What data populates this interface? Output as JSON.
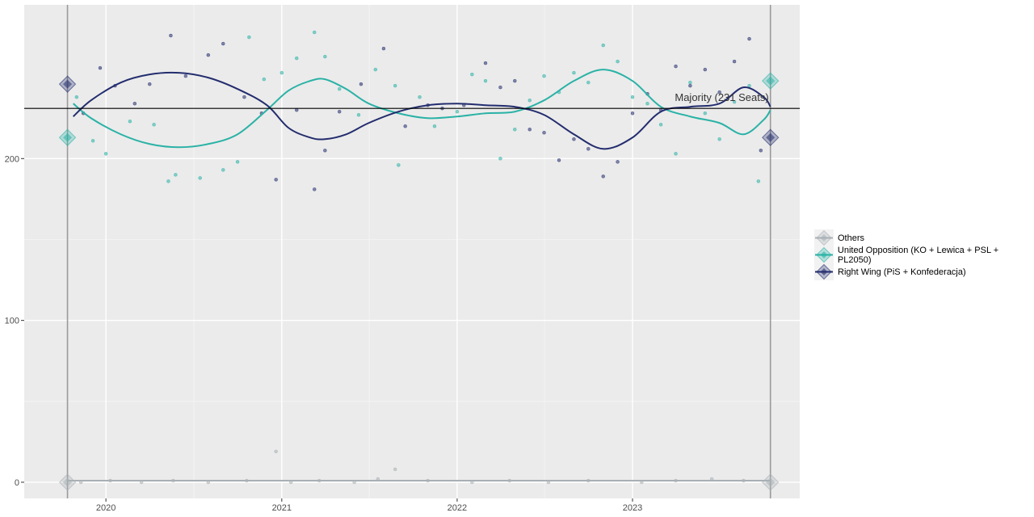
{
  "chart_data": {
    "type": "scatter",
    "title": "",
    "xlabel": "",
    "ylabel": "",
    "x_domain": [
      "2019-07-15",
      "2023-12-15"
    ],
    "ylim": [
      -10,
      295
    ],
    "x_ticks": [
      {
        "value": "2020-01-01",
        "label": "2020"
      },
      {
        "value": "2021-01-01",
        "label": "2021"
      },
      {
        "value": "2022-01-01",
        "label": "2022"
      },
      {
        "value": "2023-01-01",
        "label": "2023"
      }
    ],
    "y_ticks": [
      {
        "value": 0,
        "label": "0"
      },
      {
        "value": 100,
        "label": "100"
      },
      {
        "value": 200,
        "label": "200"
      }
    ],
    "grid": true,
    "legend_position": "right",
    "election_dates": [
      "2019-10-13",
      "2023-10-15"
    ],
    "majority": {
      "value": 231,
      "label": "Majority (231 Seats)"
    },
    "series": [
      {
        "name": "Others",
        "color": "#aab0b5",
        "icon": "diamond-icon",
        "trend": [
          [
            "2019-10-13",
            1
          ],
          [
            "2020-06-01",
            1
          ],
          [
            "2021-01-01",
            1
          ],
          [
            "2021-09-01",
            1
          ],
          [
            "2022-06-01",
            1
          ],
          [
            "2023-03-01",
            1
          ],
          [
            "2023-10-15",
            1
          ]
        ],
        "results": [
          [
            "2019-10-13",
            0
          ],
          [
            "2023-10-15",
            0
          ]
        ],
        "points": [
          [
            "2019-11-10",
            0
          ],
          [
            "2020-01-10",
            1
          ],
          [
            "2020-03-15",
            0
          ],
          [
            "2020-05-20",
            1
          ],
          [
            "2020-08-01",
            0
          ],
          [
            "2020-10-20",
            1
          ],
          [
            "2021-01-20",
            0
          ],
          [
            "2021-03-20",
            1
          ],
          [
            "2021-06-01",
            0
          ],
          [
            "2021-07-20",
            2
          ],
          [
            "2021-08-25",
            8
          ],
          [
            "2021-11-01",
            1
          ],
          [
            "2022-02-01",
            0
          ],
          [
            "2022-04-20",
            1
          ],
          [
            "2022-07-10",
            0
          ],
          [
            "2022-10-01",
            1
          ],
          [
            "2023-01-20",
            0
          ],
          [
            "2023-04-01",
            1
          ],
          [
            "2023-06-15",
            2
          ],
          [
            "2023-08-20",
            1
          ],
          [
            "2020-12-20",
            19
          ]
        ]
      },
      {
        "name": "United Opposition (KO + Lewica + PSL + PL2050)",
        "color": "#2ab2a6",
        "icon": "diamond-icon",
        "trend": [
          [
            "2019-10-25",
            234
          ],
          [
            "2019-12-01",
            225
          ],
          [
            "2020-02-01",
            215
          ],
          [
            "2020-04-01",
            209
          ],
          [
            "2020-06-01",
            207
          ],
          [
            "2020-08-01",
            209
          ],
          [
            "2020-10-01",
            215
          ],
          [
            "2020-12-01",
            230
          ],
          [
            "2021-01-15",
            242
          ],
          [
            "2021-03-01",
            248
          ],
          [
            "2021-04-01",
            249
          ],
          [
            "2021-05-15",
            243
          ],
          [
            "2021-07-01",
            234
          ],
          [
            "2021-09-01",
            228
          ],
          [
            "2021-11-01",
            225
          ],
          [
            "2022-01-01",
            226
          ],
          [
            "2022-03-01",
            228
          ],
          [
            "2022-05-01",
            229
          ],
          [
            "2022-07-01",
            236
          ],
          [
            "2022-09-01",
            248
          ],
          [
            "2022-11-01",
            255
          ],
          [
            "2023-01-01",
            248
          ],
          [
            "2023-03-01",
            232
          ],
          [
            "2023-05-01",
            226
          ],
          [
            "2023-07-01",
            222
          ],
          [
            "2023-08-20",
            215
          ],
          [
            "2023-10-01",
            224
          ],
          [
            "2023-10-15",
            230
          ]
        ],
        "results": [
          [
            "2019-10-13",
            213
          ],
          [
            "2023-10-15",
            248
          ]
        ],
        "points": [
          [
            "2019-11-01",
            238
          ],
          [
            "2019-12-05",
            211
          ],
          [
            "2020-01-01",
            203
          ],
          [
            "2020-02-20",
            223
          ],
          [
            "2020-04-10",
            221
          ],
          [
            "2020-05-10",
            186
          ],
          [
            "2020-05-25",
            190
          ],
          [
            "2020-07-15",
            188
          ],
          [
            "2020-09-01",
            193
          ],
          [
            "2020-10-01",
            198
          ],
          [
            "2020-10-25",
            275
          ],
          [
            "2020-11-25",
            249
          ],
          [
            "2021-01-01",
            253
          ],
          [
            "2021-02-01",
            262
          ],
          [
            "2021-03-10",
            278
          ],
          [
            "2021-04-01",
            263
          ],
          [
            "2021-05-01",
            243
          ],
          [
            "2021-06-10",
            227
          ],
          [
            "2021-07-15",
            255
          ],
          [
            "2021-08-25",
            245
          ],
          [
            "2021-09-01",
            196
          ],
          [
            "2021-10-15",
            238
          ],
          [
            "2021-11-15",
            220
          ],
          [
            "2022-01-01",
            229
          ],
          [
            "2022-02-01",
            252
          ],
          [
            "2022-03-01",
            248
          ],
          [
            "2022-04-01",
            200
          ],
          [
            "2022-05-01",
            218
          ],
          [
            "2022-06-01",
            236
          ],
          [
            "2022-07-01",
            251
          ],
          [
            "2022-08-01",
            241
          ],
          [
            "2022-09-01",
            253
          ],
          [
            "2022-10-01",
            247
          ],
          [
            "2022-11-01",
            270
          ],
          [
            "2022-12-01",
            260
          ],
          [
            "2023-01-01",
            238
          ],
          [
            "2023-02-01",
            234
          ],
          [
            "2023-03-01",
            221
          ],
          [
            "2023-04-01",
            203
          ],
          [
            "2023-05-01",
            247
          ],
          [
            "2023-06-01",
            228
          ],
          [
            "2023-07-01",
            212
          ],
          [
            "2023-08-01",
            235
          ],
          [
            "2023-09-01",
            245
          ],
          [
            "2023-09-20",
            186
          ]
        ]
      },
      {
        "name": "Right Wing (PiS + Konfederacja)",
        "color": "#232d6e",
        "icon": "diamond-icon",
        "trend": [
          [
            "2019-10-25",
            226
          ],
          [
            "2019-12-01",
            236
          ],
          [
            "2020-02-01",
            247
          ],
          [
            "2020-04-01",
            252
          ],
          [
            "2020-06-01",
            253
          ],
          [
            "2020-08-01",
            250
          ],
          [
            "2020-10-01",
            243
          ],
          [
            "2020-12-01",
            233
          ],
          [
            "2021-01-15",
            219
          ],
          [
            "2021-03-01",
            213
          ],
          [
            "2021-04-01",
            212
          ],
          [
            "2021-05-15",
            215
          ],
          [
            "2021-07-01",
            222
          ],
          [
            "2021-09-01",
            229
          ],
          [
            "2021-11-01",
            233
          ],
          [
            "2022-01-01",
            234
          ],
          [
            "2022-03-01",
            233
          ],
          [
            "2022-05-01",
            232
          ],
          [
            "2022-07-01",
            227
          ],
          [
            "2022-09-01",
            215
          ],
          [
            "2022-11-01",
            206
          ],
          [
            "2023-01-01",
            213
          ],
          [
            "2023-03-01",
            229
          ],
          [
            "2023-05-01",
            232
          ],
          [
            "2023-07-01",
            234
          ],
          [
            "2023-08-20",
            244
          ],
          [
            "2023-10-01",
            238
          ],
          [
            "2023-10-15",
            232
          ]
        ],
        "results": [
          [
            "2019-10-13",
            246
          ],
          [
            "2023-10-15",
            213
          ]
        ],
        "points": [
          [
            "2019-11-15",
            228
          ],
          [
            "2019-12-20",
            256
          ],
          [
            "2020-01-20",
            245
          ],
          [
            "2020-03-01",
            234
          ],
          [
            "2020-04-01",
            246
          ],
          [
            "2020-05-15",
            276
          ],
          [
            "2020-06-15",
            251
          ],
          [
            "2020-08-01",
            264
          ],
          [
            "2020-09-01",
            271
          ],
          [
            "2020-10-15",
            238
          ],
          [
            "2020-11-20",
            228
          ],
          [
            "2020-12-20",
            187
          ],
          [
            "2021-02-01",
            230
          ],
          [
            "2021-03-10",
            181
          ],
          [
            "2021-04-01",
            205
          ],
          [
            "2021-05-01",
            229
          ],
          [
            "2021-06-15",
            246
          ],
          [
            "2021-08-01",
            268
          ],
          [
            "2021-09-15",
            220
          ],
          [
            "2021-11-01",
            233
          ],
          [
            "2021-12-01",
            231
          ],
          [
            "2022-01-15",
            233
          ],
          [
            "2022-03-01",
            259
          ],
          [
            "2022-04-01",
            244
          ],
          [
            "2022-05-01",
            248
          ],
          [
            "2022-06-01",
            218
          ],
          [
            "2022-07-01",
            216
          ],
          [
            "2022-08-01",
            199
          ],
          [
            "2022-09-01",
            212
          ],
          [
            "2022-10-01",
            206
          ],
          [
            "2022-11-01",
            189
          ],
          [
            "2022-12-01",
            198
          ],
          [
            "2023-01-01",
            228
          ],
          [
            "2023-02-01",
            240
          ],
          [
            "2023-03-01",
            230
          ],
          [
            "2023-04-01",
            257
          ],
          [
            "2023-05-01",
            245
          ],
          [
            "2023-06-01",
            255
          ],
          [
            "2023-07-01",
            241
          ],
          [
            "2023-08-01",
            260
          ],
          [
            "2023-09-01",
            274
          ],
          [
            "2023-09-25",
            205
          ]
        ]
      }
    ]
  }
}
